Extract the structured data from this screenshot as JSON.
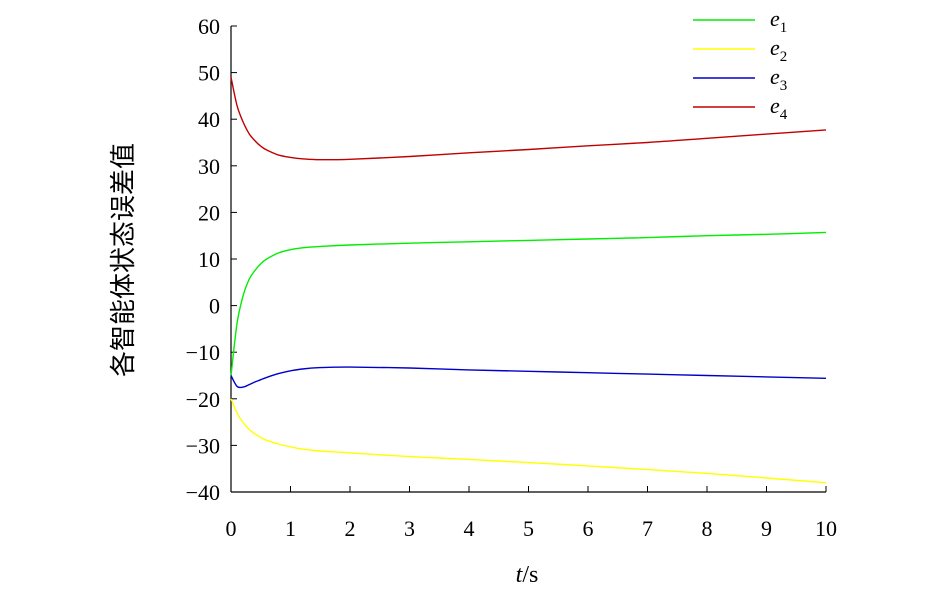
{
  "chart_data": {
    "type": "line",
    "title": "",
    "xlabel_var": "t",
    "xlabel_unit": "/s",
    "ylabel": "各智能体状态误差值",
    "xlim": [
      0,
      10
    ],
    "ylim": [
      -40,
      60
    ],
    "x_ticks": [
      0,
      1,
      2,
      3,
      4,
      5,
      6,
      7,
      8,
      9,
      10
    ],
    "y_ticks": [
      60,
      50,
      40,
      30,
      20,
      10,
      0,
      -10,
      -20,
      -30,
      -40
    ],
    "grid": false,
    "legend_position": "top-right",
    "x": [
      0,
      0.1,
      0.2,
      0.3,
      0.4,
      0.5,
      0.6,
      0.8,
      1.0,
      1.2,
      1.5,
      2,
      3,
      4,
      5,
      6,
      7,
      8,
      9,
      10
    ],
    "series": [
      {
        "name": "e",
        "subscript": "1",
        "color": "#00ee00",
        "values": [
          -15,
          -4,
          2,
          5.5,
          7.5,
          9,
          10,
          11.3,
          12,
          12.4,
          12.7,
          13,
          13.4,
          13.7,
          14,
          14.3,
          14.6,
          15,
          15.3,
          15.7
        ]
      },
      {
        "name": "e",
        "subscript": "2",
        "color": "#ffff00",
        "values": [
          -20,
          -23,
          -25,
          -26.5,
          -27.5,
          -28.3,
          -28.9,
          -29.7,
          -30.3,
          -30.8,
          -31.2,
          -31.6,
          -32.4,
          -33,
          -33.7,
          -34.4,
          -35.2,
          -36,
          -37,
          -38
        ]
      },
      {
        "name": "e",
        "subscript": "3",
        "color": "#0000cc",
        "values": [
          -15,
          -17.3,
          -17.5,
          -17,
          -16.4,
          -15.9,
          -15.4,
          -14.6,
          -14,
          -13.6,
          -13.3,
          -13.2,
          -13.4,
          -13.8,
          -14.1,
          -14.4,
          -14.7,
          -15,
          -15.3,
          -15.6
        ]
      },
      {
        "name": "e",
        "subscript": "4",
        "color": "#c00000",
        "values": [
          49,
          43,
          39.5,
          37,
          35.4,
          34.2,
          33.4,
          32.3,
          31.8,
          31.5,
          31.3,
          31.4,
          32,
          32.8,
          33.5,
          34.3,
          35,
          35.9,
          36.8,
          37.7
        ]
      }
    ]
  }
}
